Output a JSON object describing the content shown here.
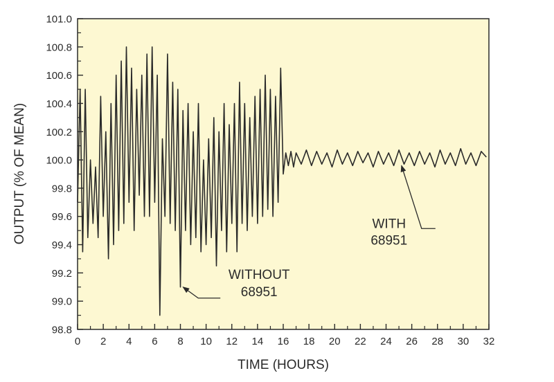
{
  "chart_data": {
    "type": "line",
    "xlabel": "TIME (HOURS)",
    "ylabel": "OUTPUT (% OF MEAN)",
    "xlim": [
      0,
      32
    ],
    "ylim": [
      98.8,
      101.0
    ],
    "x_ticks": [
      "0",
      "2",
      "4",
      "6",
      "8",
      "10",
      "12",
      "14",
      "16",
      "18",
      "20",
      "22",
      "24",
      "26",
      "28",
      "30",
      "32"
    ],
    "y_ticks": [
      "98.8",
      "99.0",
      "99.2",
      "99.4",
      "99.6",
      "99.8",
      "100.0",
      "100.2",
      "100.4",
      "100.6",
      "100.8",
      "101.0"
    ],
    "series": [
      {
        "x": [
          0.0,
          0.2,
          0.4,
          0.6,
          0.8,
          1.0,
          1.2,
          1.4,
          1.6,
          1.8,
          2.0,
          2.2,
          2.4,
          2.6,
          2.8,
          3.0,
          3.2,
          3.4,
          3.6,
          3.8,
          4.0,
          4.2,
          4.4,
          4.6,
          4.8,
          5.0,
          5.2,
          5.4,
          5.6,
          5.8,
          6.0,
          6.2,
          6.4,
          6.6,
          6.8,
          7.0,
          7.2,
          7.4,
          7.6,
          7.8,
          8.0,
          8.2,
          8.4,
          8.6,
          8.8,
          9.0,
          9.2,
          9.4,
          9.6,
          9.8,
          10.0,
          10.2,
          10.4,
          10.6,
          10.8,
          11.0,
          11.2,
          11.4,
          11.6,
          11.8,
          12.0,
          12.2,
          12.4,
          12.6,
          12.8,
          13.0,
          13.2,
          13.4,
          13.6,
          13.8,
          14.0,
          14.2,
          14.4,
          14.6,
          14.8,
          15.0,
          15.2,
          15.4,
          15.6,
          15.8,
          16.0,
          16.2,
          16.4,
          16.6,
          16.8,
          17.0,
          17.4,
          17.8,
          18.2,
          18.6,
          19.0,
          19.4,
          19.8,
          20.2,
          20.6,
          21.0,
          21.4,
          21.8,
          22.2,
          22.6,
          23.0,
          23.4,
          23.8,
          24.2,
          24.6,
          25.0,
          25.4,
          25.8,
          26.2,
          26.6,
          27.0,
          27.4,
          27.8,
          28.2,
          28.6,
          29.0,
          29.4,
          29.8,
          30.2,
          30.6,
          31.0,
          31.4,
          31.8
        ],
        "y": [
          99.7,
          100.5,
          99.35,
          100.5,
          99.45,
          100.0,
          99.55,
          99.95,
          99.45,
          100.45,
          99.6,
          100.2,
          99.3,
          100.4,
          99.4,
          100.6,
          99.5,
          100.7,
          99.55,
          100.8,
          99.7,
          100.65,
          99.5,
          100.5,
          99.75,
          100.6,
          99.6,
          100.75,
          99.6,
          100.8,
          99.7,
          100.6,
          98.9,
          100.15,
          99.6,
          100.75,
          99.55,
          100.55,
          99.5,
          100.5,
          99.1,
          100.35,
          99.5,
          100.4,
          99.4,
          100.2,
          99.45,
          100.4,
          99.35,
          100.0,
          99.4,
          100.15,
          99.45,
          100.3,
          99.25,
          100.2,
          99.5,
          100.4,
          99.35,
          100.25,
          99.55,
          100.4,
          99.35,
          100.55,
          99.55,
          100.4,
          99.5,
          100.3,
          99.6,
          100.45,
          99.55,
          100.5,
          99.6,
          100.6,
          99.65,
          100.5,
          99.6,
          100.45,
          99.7,
          100.65,
          99.9,
          100.05,
          99.96,
          100.06,
          99.95,
          100.05,
          99.97,
          100.07,
          99.96,
          100.06,
          99.97,
          100.05,
          99.95,
          100.07,
          99.97,
          100.05,
          99.96,
          100.06,
          99.98,
          100.05,
          99.95,
          100.06,
          99.97,
          100.05,
          99.96,
          100.07,
          99.97,
          100.05,
          99.96,
          100.06,
          99.97,
          100.05,
          99.95,
          100.07,
          99.97,
          100.05,
          99.96,
          100.08,
          99.97,
          100.05,
          99.96,
          100.06,
          100.02
        ]
      }
    ],
    "annotations": [
      {
        "text_line1": "WITHOUT",
        "text_line2": "68951",
        "x": 8.2,
        "y": 99.1
      },
      {
        "text_line1": "WITH",
        "text_line2": "68951",
        "x": 25.2,
        "y": 99.96
      }
    ],
    "grid": false,
    "colors": {
      "plot_background": "#fdf8d2",
      "line": "#2a2a2a",
      "text": "#2a2a2a"
    }
  }
}
